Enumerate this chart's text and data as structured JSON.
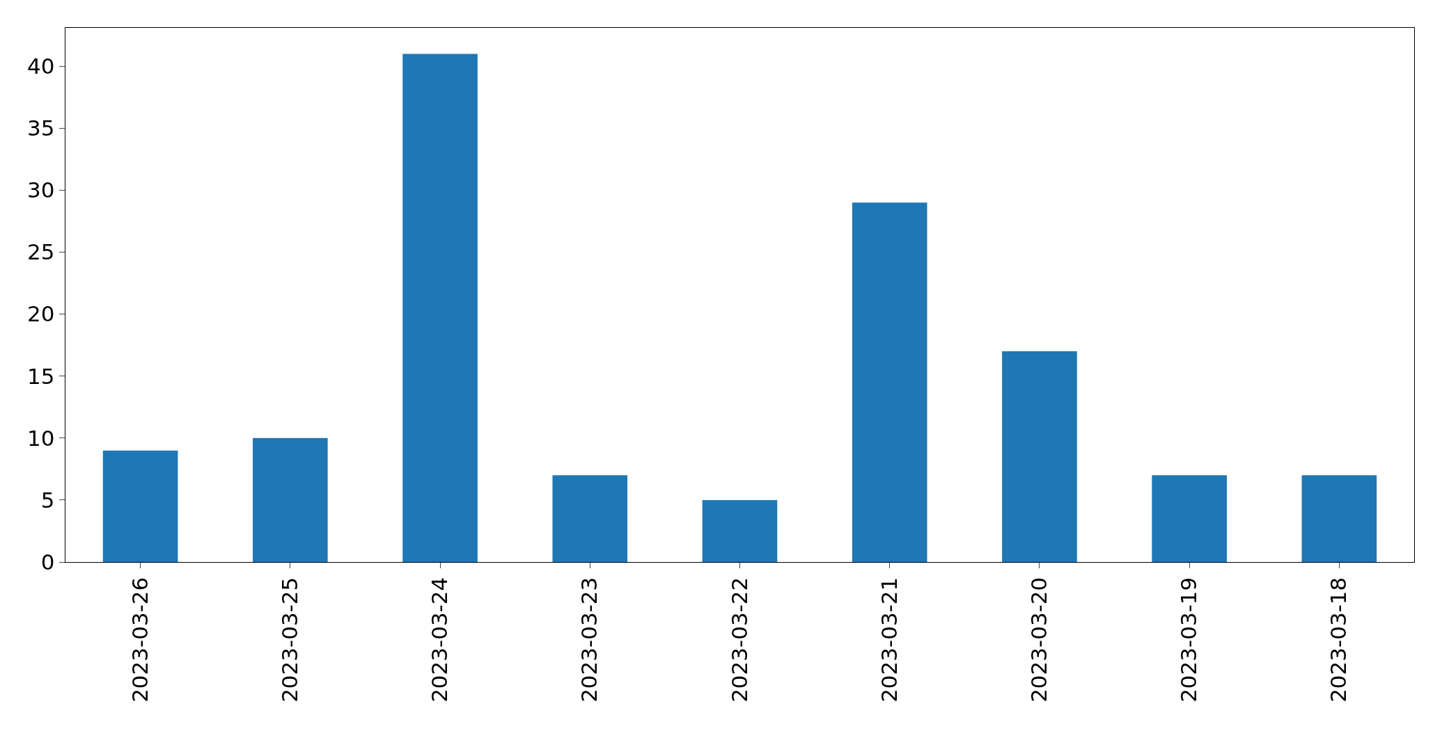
{
  "chart_data": {
    "type": "bar",
    "categories": [
      "2023-03-26",
      "2023-03-25",
      "2023-03-24",
      "2023-03-23",
      "2023-03-22",
      "2023-03-21",
      "2023-03-20",
      "2023-03-19",
      "2023-03-18"
    ],
    "values": [
      9,
      10,
      41,
      7,
      5,
      29,
      17,
      7,
      7
    ],
    "color": "#1f77b4",
    "ylim": [
      0,
      43.1
    ],
    "yticks": [
      0,
      5,
      10,
      15,
      20,
      25,
      30,
      35,
      40
    ]
  }
}
